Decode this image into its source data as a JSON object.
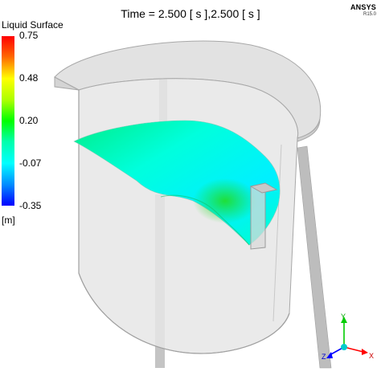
{
  "header": {
    "time_label": "Time = 2.500 [ s ],2.500 [ s ]",
    "brand": "ANSYS",
    "version": "R15.0"
  },
  "legend": {
    "title": "Liquid Surface",
    "ticks": [
      "0.75",
      "0.48",
      "0.20",
      "-0.07",
      "-0.35"
    ],
    "unit": "[m]",
    "colormap": [
      "#ff0000",
      "#ffff00",
      "#00ff00",
      "#00ffff",
      "#0000ff"
    ]
  },
  "triad": {
    "x": "X",
    "y": "Y",
    "z": "Z",
    "colors": {
      "x": "#ff0000",
      "y": "#00cc00",
      "z": "#0000ff"
    }
  },
  "colors": {
    "tank_fill": "#e8e8e8",
    "tank_edge": "#b8b8b8",
    "rod": "#bdbdbd",
    "surface_main": "#00ffcc",
    "surface_low": "#00dd55"
  }
}
